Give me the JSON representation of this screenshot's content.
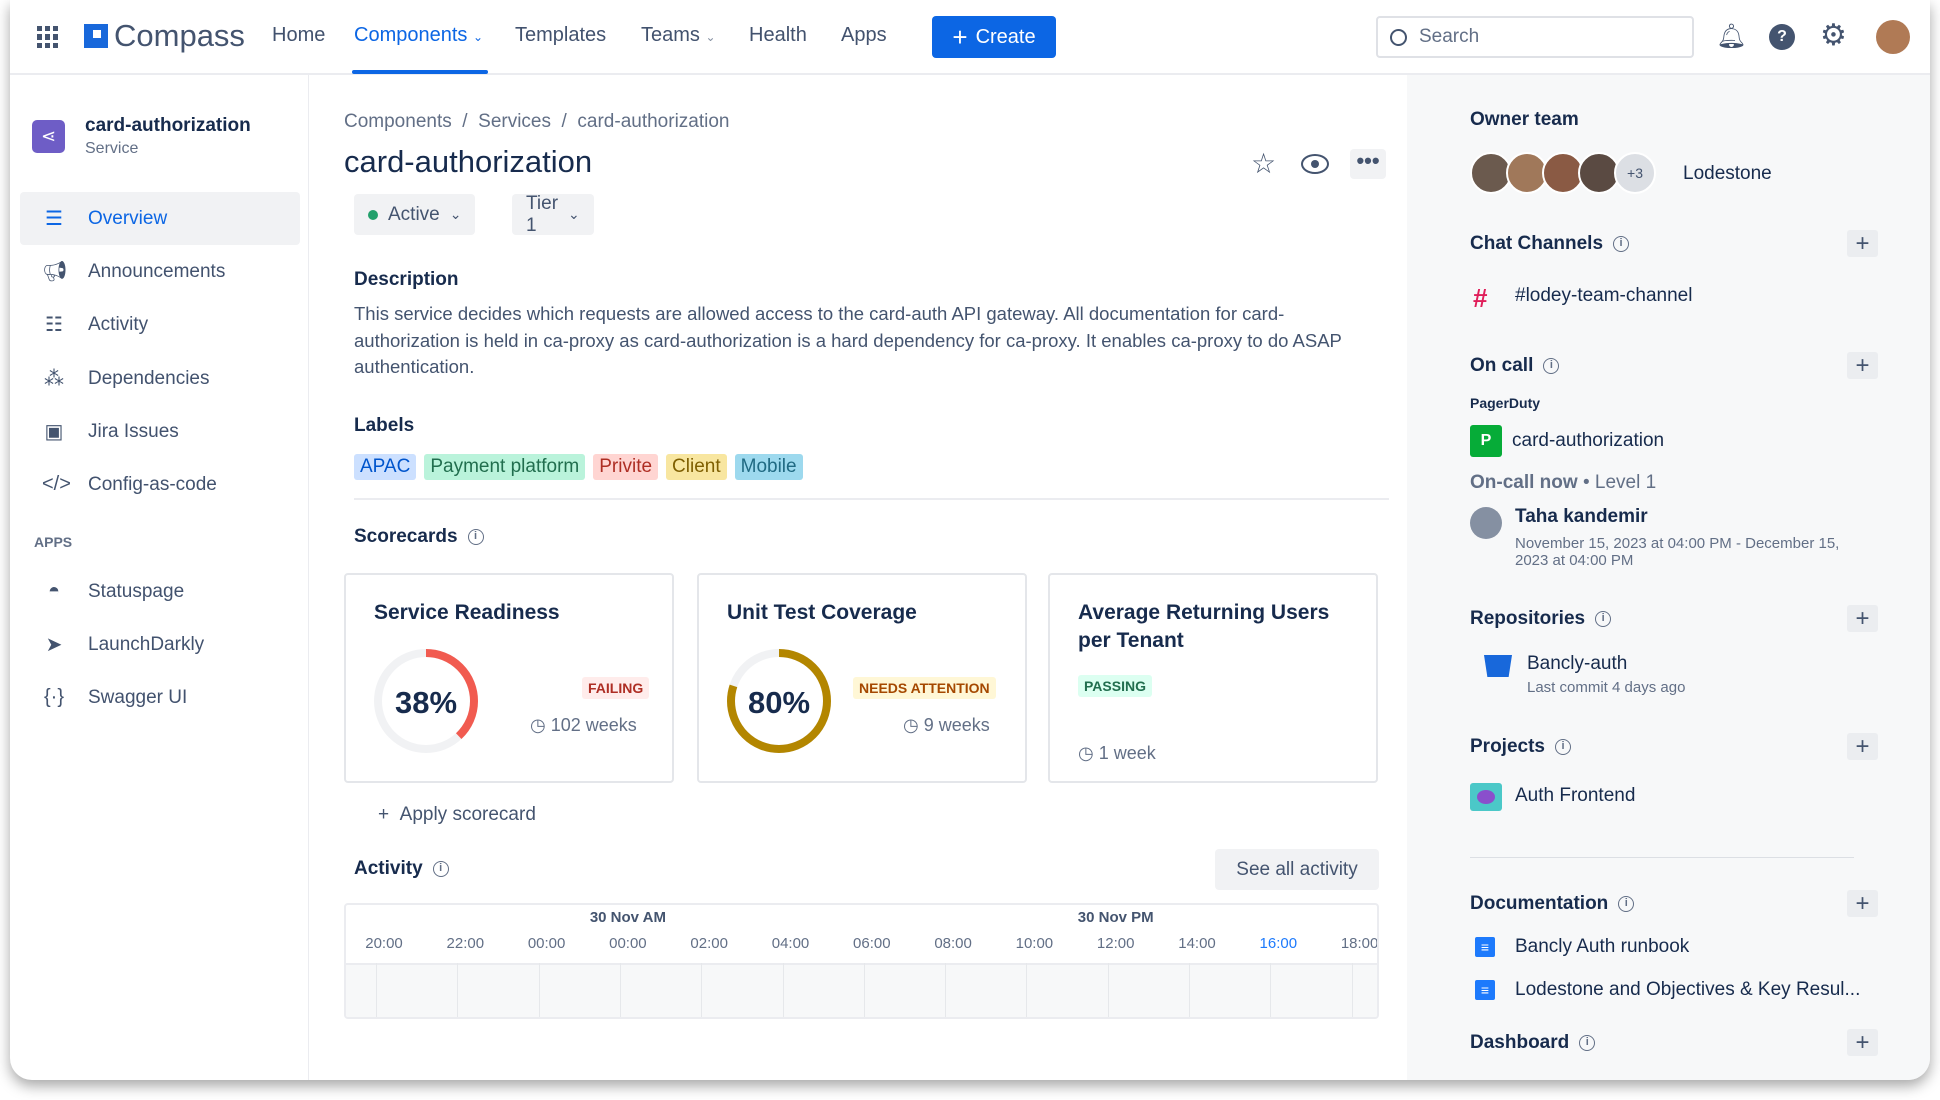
{
  "nav": {
    "logo": "Compass",
    "items": [
      "Home",
      "Components",
      "Templates",
      "Teams",
      "Health",
      "Apps"
    ],
    "active": "Components",
    "create": "Create",
    "search_placeholder": "Search"
  },
  "sidebar": {
    "title": "card-authorization",
    "subtitle": "Service",
    "items": [
      {
        "label": "Overview",
        "icon": "overview-icon"
      },
      {
        "label": "Announcements",
        "icon": "megaphone-icon"
      },
      {
        "label": "Activity",
        "icon": "activity-icon"
      },
      {
        "label": "Dependencies",
        "icon": "dependencies-icon"
      },
      {
        "label": "Jira Issues",
        "icon": "jira-issues-icon"
      },
      {
        "label": "Config-as-code",
        "icon": "code-icon"
      }
    ],
    "apps_label": "APPS",
    "apps": [
      {
        "label": "Statuspage",
        "icon": "statuspage-icon"
      },
      {
        "label": "LaunchDarkly",
        "icon": "launchdarkly-icon"
      },
      {
        "label": "Swagger UI",
        "icon": "swagger-icon"
      }
    ]
  },
  "main": {
    "breadcrumb": [
      "Components",
      "Services",
      "card-authorization"
    ],
    "title": "card-authorization",
    "status": "Active",
    "tier": "Tier 1",
    "description_heading": "Description",
    "description": "This service decides which requests are allowed access to the card-auth API gateway. All documentation for card-authorization is held in ca-proxy as card-authorization is a hard dependency for ca-proxy. It enables ca-proxy to do ASAP authentication.",
    "labels_heading": "Labels",
    "labels": [
      {
        "text": "APAC",
        "bg": "#cce0ff",
        "fg": "#0055cc"
      },
      {
        "text": "Payment platform",
        "bg": "#baf3db",
        "fg": "#216e4e"
      },
      {
        "text": "Privite",
        "bg": "#ffd5d2",
        "fg": "#ae2e24"
      },
      {
        "text": "Client",
        "bg": "#f8e6a0",
        "fg": "#7f5f01"
      },
      {
        "text": "Mobile",
        "bg": "#9dd9ee",
        "fg": "#206a83"
      }
    ],
    "scorecards_heading": "Scorecards",
    "scorecards": [
      {
        "title": "Service Readiness",
        "percent": "38%",
        "value": 38,
        "status": "FAILING",
        "duration": "102 weeks",
        "color": "#f15b50"
      },
      {
        "title": "Unit Test Coverage",
        "percent": "80%",
        "value": 80,
        "status": "NEEDS ATTENTION",
        "duration": "9 weeks",
        "color": "#b38600"
      },
      {
        "title": "Average Returning Users per Tenant",
        "status": "PASSING",
        "duration": "1 week"
      }
    ],
    "apply_scorecard": "Apply scorecard",
    "activity_heading": "Activity",
    "see_all": "See all activity",
    "timeline": {
      "dates": [
        "30 Nov AM",
        "30 Nov PM"
      ],
      "ticks": [
        "20:00",
        "22:00",
        "00:00",
        "00:00",
        "02:00",
        "04:00",
        "06:00",
        "08:00",
        "10:00",
        "12:00",
        "14:00",
        "16:00",
        "18:00"
      ],
      "current": "16:00"
    }
  },
  "right": {
    "owner_heading": "Owner team",
    "owner_extra": "+3",
    "owner": "Lodestone",
    "chat_heading": "Chat Channels",
    "channel": "#lodey-team-channel",
    "oncall_heading": "On call",
    "oncall_provider": "PagerDuty",
    "oncall_service": "card-authorization",
    "oncall_now": "On-call now",
    "oncall_level": "• Level 1",
    "oncall_person": "Taha kandemir",
    "oncall_dates": "November 15, 2023 at 04:00 PM - December 15, 2023 at 04:00 PM",
    "repos_heading": "Repositories",
    "repo": "Bancly-auth",
    "repo_meta": "Last commit 4 days ago",
    "projects_heading": "Projects",
    "project": "Auth Frontend",
    "docs_heading": "Documentation",
    "docs": [
      "Bancly Auth runbook",
      "Lodestone and Objectives & Key Resul..."
    ],
    "dashboard_heading": "Dashboard"
  }
}
